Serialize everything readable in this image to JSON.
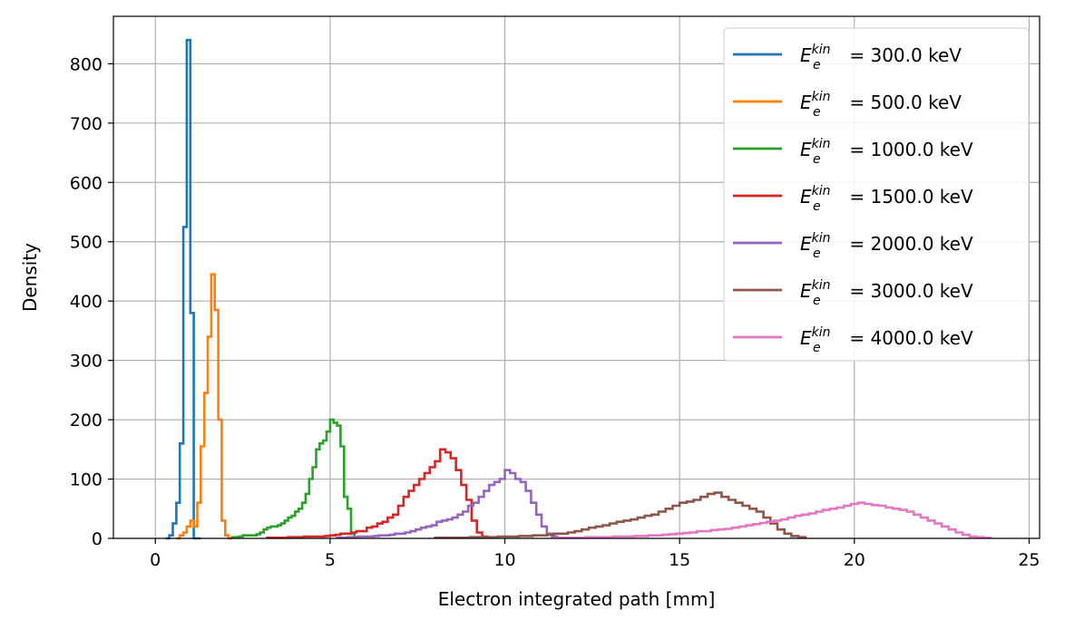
{
  "chart_data": {
    "type": "histogram-step",
    "xlabel": "Electron integrated path [mm]",
    "ylabel": "Density",
    "xlim": [
      -1.2,
      25.3
    ],
    "ylim": [
      0,
      880
    ],
    "xticks": [
      0,
      5,
      10,
      15,
      20,
      25
    ],
    "yticks": [
      0,
      100,
      200,
      300,
      400,
      500,
      600,
      700,
      800
    ],
    "grid": true,
    "legend_position": "upper right",
    "series": [
      {
        "name": "300.0 keV",
        "color": "#1f77b4",
        "bin_width": 0.1,
        "edges_start": 0.3,
        "density": [
          0,
          5,
          25,
          60,
          160,
          525,
          840,
          380,
          0,
          0
        ]
      },
      {
        "name": "500.0 keV",
        "color": "#ff7f0e",
        "bin_width": 0.1,
        "edges_start": 0.6,
        "density": [
          0,
          5,
          10,
          20,
          30,
          20,
          60,
          155,
          245,
          340,
          445,
          385,
          200,
          30,
          5,
          0
        ]
      },
      {
        "name": "1000.0 keV",
        "color": "#2ca02c",
        "bin_width": 0.1,
        "edges_start": 2.2,
        "density": [
          2,
          2,
          3,
          5,
          5,
          5,
          5,
          7,
          10,
          15,
          18,
          20,
          20,
          22,
          25,
          30,
          35,
          38,
          45,
          50,
          60,
          75,
          100,
          120,
          150,
          160,
          165,
          180,
          200,
          195,
          190,
          155,
          70,
          50,
          8,
          2
        ]
      },
      {
        "name": "1500.0 keV",
        "color": "#d62728",
        "bin_width": 0.15,
        "edges_start": 3.2,
        "density": [
          1,
          1,
          1,
          1,
          2,
          2,
          2,
          3,
          3,
          3,
          3,
          4,
          5,
          6,
          8,
          8,
          10,
          12,
          12,
          18,
          20,
          25,
          28,
          35,
          40,
          55,
          70,
          80,
          90,
          100,
          110,
          120,
          130,
          150,
          145,
          135,
          115,
          90,
          65,
          30,
          10,
          3
        ]
      },
      {
        "name": "2000.0 keV",
        "color": "#9467bd",
        "bin_width": 0.15,
        "edges_start": 5.2,
        "density": [
          1,
          1,
          2,
          2,
          3,
          3,
          3,
          4,
          5,
          5,
          6,
          8,
          8,
          10,
          12,
          15,
          18,
          20,
          22,
          28,
          30,
          32,
          35,
          40,
          45,
          55,
          60,
          70,
          80,
          90,
          95,
          100,
          115,
          110,
          100,
          95,
          80,
          60,
          40,
          20,
          8,
          3
        ]
      },
      {
        "name": "3000.0 keV",
        "color": "#8c564b",
        "bin_width": 0.2,
        "edges_start": 8.0,
        "density": [
          1,
          1,
          1,
          1,
          1,
          2,
          2,
          2,
          2,
          3,
          3,
          3,
          4,
          4,
          5,
          5,
          6,
          8,
          8,
          10,
          12,
          15,
          18,
          20,
          22,
          25,
          28,
          30,
          32,
          35,
          38,
          40,
          45,
          50,
          55,
          60,
          62,
          65,
          70,
          75,
          77,
          70,
          65,
          60,
          55,
          50,
          45,
          35,
          25,
          15,
          8,
          4,
          2
        ]
      },
      {
        "name": "4000.0 keV",
        "color": "#e377c2",
        "bin_width": 0.2,
        "edges_start": 11.5,
        "density": [
          1,
          1,
          1,
          1,
          2,
          2,
          2,
          2,
          3,
          3,
          3,
          4,
          4,
          5,
          5,
          6,
          7,
          8,
          9,
          10,
          12,
          12,
          14,
          15,
          16,
          18,
          20,
          22,
          24,
          26,
          28,
          30,
          32,
          35,
          38,
          40,
          42,
          45,
          48,
          50,
          52,
          55,
          58,
          60,
          58,
          56,
          55,
          52,
          50,
          48,
          45,
          40,
          35,
          30,
          25,
          20,
          15,
          10,
          6,
          3,
          2,
          1
        ]
      }
    ]
  }
}
